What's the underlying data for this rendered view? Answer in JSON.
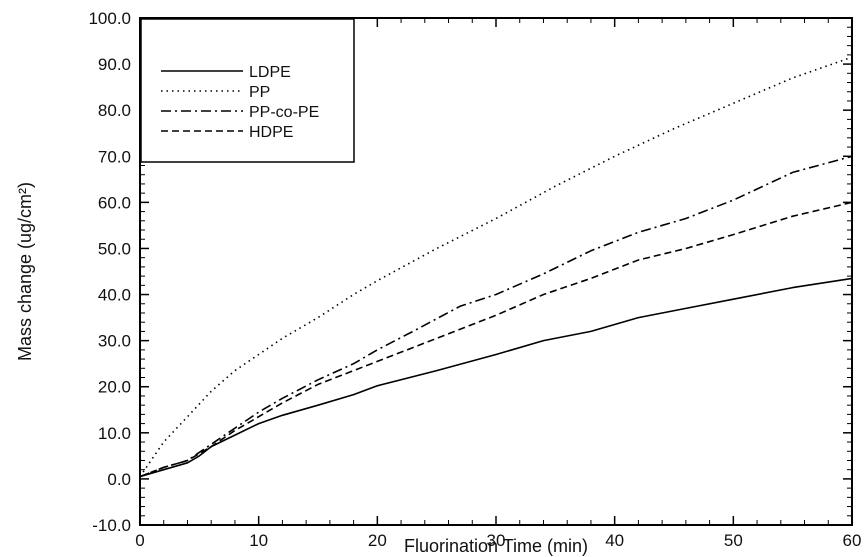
{
  "chart_data": {
    "type": "line",
    "title": "",
    "xlabel": "Fluorination Time (min)",
    "ylabel": "Mass change (ug/cm²)",
    "xlim": [
      0,
      60
    ],
    "ylim": [
      -10,
      100
    ],
    "xticks": [
      0,
      10,
      20,
      30,
      40,
      50,
      60
    ],
    "xtick_labels": [
      "0",
      "10",
      "20",
      "30",
      "40",
      "50",
      "60"
    ],
    "yticks": [
      -10,
      0,
      10,
      20,
      30,
      40,
      50,
      60,
      70,
      80,
      90,
      100
    ],
    "ytick_labels": [
      "-10.0",
      "0.0",
      "10.0",
      "20.0",
      "30.0",
      "40.0",
      "50.0",
      "60.0",
      "70.0",
      "80.0",
      "90.0",
      "100.0"
    ],
    "grid": false,
    "legend_position": "top-left",
    "series": [
      {
        "name": "LDPE",
        "line_style": "solid",
        "color": "#000000",
        "x": [
          0,
          2,
          4,
          5,
          6,
          8,
          10,
          12,
          15,
          18,
          20,
          25,
          30,
          34,
          38,
          42,
          46,
          50,
          55,
          60
        ],
        "y": [
          0.5,
          2.0,
          3.5,
          5.0,
          7.0,
          9.5,
          12.0,
          13.8,
          16.0,
          18.3,
          20.2,
          23.5,
          27.0,
          30.0,
          32.0,
          35.0,
          37.0,
          39.0,
          41.5,
          43.5
        ]
      },
      {
        "name": "PP",
        "line_style": "dotted",
        "color": "#000000",
        "x": [
          0,
          2,
          4,
          6,
          8,
          10,
          12,
          15,
          18,
          20,
          25,
          30,
          35,
          40,
          45,
          50,
          55,
          60
        ],
        "y": [
          0.5,
          8.0,
          13.5,
          19.0,
          23.5,
          27.0,
          30.5,
          35.0,
          40.0,
          43.0,
          50.0,
          56.5,
          63.5,
          70.0,
          76.0,
          81.5,
          87.0,
          91.5
        ]
      },
      {
        "name": "PP-co-PE",
        "line_style": "dash-dot",
        "color": "#000000",
        "x": [
          0,
          2,
          4,
          6,
          8,
          10,
          12,
          15,
          18,
          20,
          23,
          27,
          30,
          34,
          38,
          42,
          46,
          50,
          55,
          60
        ],
        "y": [
          0.5,
          2.5,
          4.0,
          7.5,
          11.0,
          14.5,
          17.5,
          21.5,
          25.0,
          28.0,
          32.0,
          37.5,
          40.0,
          44.5,
          49.5,
          53.5,
          56.5,
          60.5,
          66.5,
          70.0
        ]
      },
      {
        "name": "HDPE",
        "line_style": "dashed",
        "color": "#000000",
        "x": [
          0,
          2,
          4,
          6,
          8,
          10,
          12,
          15,
          18,
          20,
          23,
          27,
          30,
          34,
          38,
          42,
          46,
          50,
          55,
          60
        ],
        "y": [
          0.5,
          2.5,
          4.0,
          7.0,
          10.5,
          13.5,
          16.5,
          20.5,
          23.5,
          25.5,
          28.5,
          32.5,
          35.5,
          40.0,
          43.5,
          47.5,
          50.0,
          53.0,
          57.0,
          60.0
        ]
      }
    ]
  }
}
